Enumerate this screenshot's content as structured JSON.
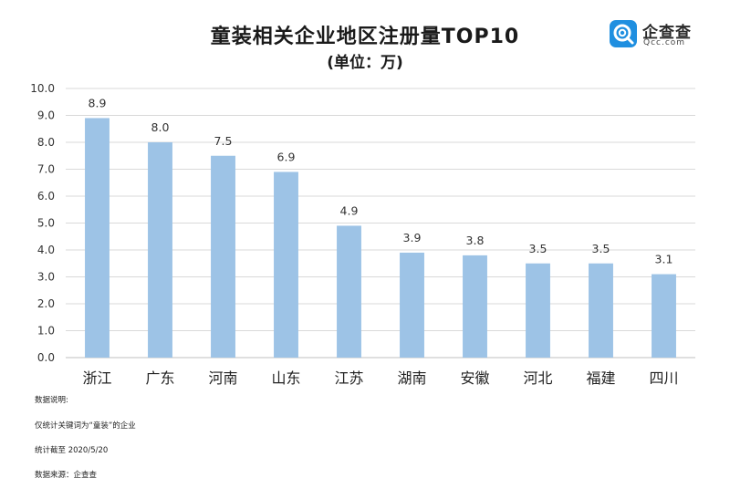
{
  "chart_data": {
    "type": "bar",
    "title": "童装相关企业地区注册量TOP10",
    "subtitle": "(单位：万)",
    "categories": [
      "浙江",
      "广东",
      "河南",
      "山东",
      "江苏",
      "湖南",
      "安徽",
      "河北",
      "福建",
      "四川"
    ],
    "values": [
      8.9,
      8.0,
      7.5,
      6.9,
      4.9,
      3.9,
      3.8,
      3.5,
      3.5,
      3.1
    ],
    "value_labels": [
      "8.9",
      "8.0",
      "7.5",
      "6.9",
      "4.9",
      "3.9",
      "3.8",
      "3.5",
      "3.5",
      "3.1"
    ],
    "yticks": [
      "0.0",
      "1.0",
      "2.0",
      "3.0",
      "4.0",
      "5.0",
      "6.0",
      "7.0",
      "8.0",
      "9.0",
      "10.0"
    ],
    "ylim": [
      0,
      10
    ],
    "grid": true,
    "bar_color": "#9dc3e6"
  },
  "logo": {
    "name": "企查查",
    "domain": "Qcc.com"
  },
  "notes": {
    "heading": "数据说明:",
    "line1": "仅统计关键词为“童装”的企业",
    "line2": "统计截至 2020/5/20",
    "line3": "数据来源：企查查"
  }
}
